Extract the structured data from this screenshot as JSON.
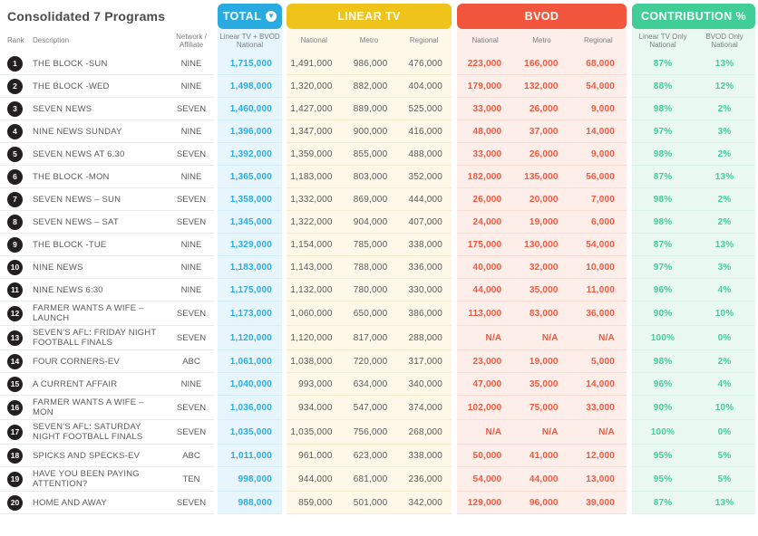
{
  "title": "Consolidated 7 Programs",
  "colors": {
    "total_blue": "#29abe2",
    "linear_yellow": "#efc319",
    "bvod_red": "#f2573d",
    "contrib_green": "#41ce96"
  },
  "header": {
    "groups": {
      "total": "TOTAL",
      "total_sort_icon": "sort-down-circle-icon",
      "linear": "LINEAR TV",
      "bvod": "BVOD",
      "contribution": "CONTRIBUTION %"
    },
    "sub": {
      "rank": "Rank",
      "description": "Description",
      "network": "Network / Affiliate",
      "total": "Linear TV + BVOD National",
      "linear": [
        "National",
        "Metro",
        "Regional"
      ],
      "bvod": [
        "National",
        "Metro",
        "Regional"
      ],
      "contribution": [
        "Linear TV Only National",
        "BVOD Only National"
      ]
    }
  },
  "rows": [
    {
      "rank": "1",
      "description": "THE BLOCK -SUN",
      "network": "NINE",
      "total": "1,715,000",
      "linear": [
        "1,491,000",
        "986,000",
        "476,000"
      ],
      "bvod": [
        "223,000",
        "166,000",
        "68,000"
      ],
      "contribution": [
        "87%",
        "13%"
      ]
    },
    {
      "rank": "2",
      "description": "THE BLOCK -WED",
      "network": "NINE",
      "total": "1,498,000",
      "linear": [
        "1,320,000",
        "882,000",
        "404,000"
      ],
      "bvod": [
        "179,000",
        "132,000",
        "54,000"
      ],
      "contribution": [
        "88%",
        "12%"
      ]
    },
    {
      "rank": "3",
      "description": "SEVEN NEWS",
      "network": "SEVEN",
      "total": "1,460,000",
      "linear": [
        "1,427,000",
        "889,000",
        "525,000"
      ],
      "bvod": [
        "33,000",
        "26,000",
        "9,000"
      ],
      "contribution": [
        "98%",
        "2%"
      ]
    },
    {
      "rank": "4",
      "description": "NINE NEWS SUNDAY",
      "network": "NINE",
      "total": "1,396,000",
      "linear": [
        "1,347,000",
        "900,000",
        "416,000"
      ],
      "bvod": [
        "48,000",
        "37,000",
        "14,000"
      ],
      "contribution": [
        "97%",
        "3%"
      ]
    },
    {
      "rank": "5",
      "description": "SEVEN NEWS AT 6.30",
      "network": "SEVEN",
      "total": "1,392,000",
      "linear": [
        "1,359,000",
        "855,000",
        "488,000"
      ],
      "bvod": [
        "33,000",
        "26,000",
        "9,000"
      ],
      "contribution": [
        "98%",
        "2%"
      ]
    },
    {
      "rank": "6",
      "description": "THE BLOCK -MON",
      "network": "NINE",
      "total": "1,365,000",
      "linear": [
        "1,183,000",
        "803,000",
        "352,000"
      ],
      "bvod": [
        "182,000",
        "135,000",
        "56,000"
      ],
      "contribution": [
        "87%",
        "13%"
      ]
    },
    {
      "rank": "7",
      "description": "SEVEN NEWS – SUN",
      "network": "SEVEN",
      "total": "1,358,000",
      "linear": [
        "1,332,000",
        "869,000",
        "444,000"
      ],
      "bvod": [
        "26,000",
        "20,000",
        "7,000"
      ],
      "contribution": [
        "98%",
        "2%"
      ]
    },
    {
      "rank": "8",
      "description": "SEVEN NEWS – SAT",
      "network": "SEVEN",
      "total": "1,345,000",
      "linear": [
        "1,322,000",
        "904,000",
        "407,000"
      ],
      "bvod": [
        "24,000",
        "19,000",
        "6,000"
      ],
      "contribution": [
        "98%",
        "2%"
      ]
    },
    {
      "rank": "9",
      "description": "THE BLOCK -TUE",
      "network": "NINE",
      "total": "1,329,000",
      "linear": [
        "1,154,000",
        "785,000",
        "338,000"
      ],
      "bvod": [
        "175,000",
        "130,000",
        "54,000"
      ],
      "contribution": [
        "87%",
        "13%"
      ]
    },
    {
      "rank": "10",
      "description": "NINE NEWS",
      "network": "NINE",
      "total": "1,183,000",
      "linear": [
        "1,143,000",
        "788,000",
        "336,000"
      ],
      "bvod": [
        "40,000",
        "32,000",
        "10,000"
      ],
      "contribution": [
        "97%",
        "3%"
      ]
    },
    {
      "rank": "11",
      "description": "NINE NEWS 6:30",
      "network": "NINE",
      "total": "1,175,000",
      "linear": [
        "1,132,000",
        "780,000",
        "330,000"
      ],
      "bvod": [
        "44,000",
        "35,000",
        "11,000"
      ],
      "contribution": [
        "96%",
        "4%"
      ]
    },
    {
      "rank": "12",
      "description": "FARMER WANTS A WIFE – LAUNCH",
      "network": "SEVEN",
      "total": "1,173,000",
      "linear": [
        "1,060,000",
        "650,000",
        "386,000"
      ],
      "bvod": [
        "113,000",
        "83,000",
        "36,000"
      ],
      "contribution": [
        "90%",
        "10%"
      ]
    },
    {
      "rank": "13",
      "description": "SEVEN'S AFL: FRIDAY NIGHT FOOTBALL FINALS",
      "network": "SEVEN",
      "total": "1,120,000",
      "linear": [
        "1,120,000",
        "817,000",
        "288,000"
      ],
      "bvod": [
        "N/A",
        "N/A",
        "N/A"
      ],
      "contribution": [
        "100%",
        "0%"
      ]
    },
    {
      "rank": "14",
      "description": "FOUR CORNERS-EV",
      "network": "ABC",
      "total": "1,061,000",
      "linear": [
        "1,038,000",
        "720,000",
        "317,000"
      ],
      "bvod": [
        "23,000",
        "19,000",
        "5,000"
      ],
      "contribution": [
        "98%",
        "2%"
      ]
    },
    {
      "rank": "15",
      "description": "A CURRENT AFFAIR",
      "network": "NINE",
      "total": "1,040,000",
      "linear": [
        "993,000",
        "634,000",
        "340,000"
      ],
      "bvod": [
        "47,000",
        "35,000",
        "14,000"
      ],
      "contribution": [
        "96%",
        "4%"
      ]
    },
    {
      "rank": "16",
      "description": "FARMER WANTS A WIFE – MON",
      "network": "SEVEN",
      "total": "1,036,000",
      "linear": [
        "934,000",
        "547,000",
        "374,000"
      ],
      "bvod": [
        "102,000",
        "75,000",
        "33,000"
      ],
      "contribution": [
        "90%",
        "10%"
      ]
    },
    {
      "rank": "17",
      "description": "SEVEN'S AFL: SATURDAY NIGHT FOOTBALL FINALS",
      "network": "SEVEN",
      "total": "1,035,000",
      "linear": [
        "1,035,000",
        "756,000",
        "268,000"
      ],
      "bvod": [
        "N/A",
        "N/A",
        "N/A"
      ],
      "contribution": [
        "100%",
        "0%"
      ]
    },
    {
      "rank": "18",
      "description": "SPICKS AND SPECKS-EV",
      "network": "ABC",
      "total": "1,011,000",
      "linear": [
        "961,000",
        "623,000",
        "338,000"
      ],
      "bvod": [
        "50,000",
        "41,000",
        "12,000"
      ],
      "contribution": [
        "95%",
        "5%"
      ]
    },
    {
      "rank": "19",
      "description": "HAVE YOU BEEN PAYING ATTENTION?",
      "network": "TEN",
      "total": "998,000",
      "linear": [
        "944,000",
        "681,000",
        "236,000"
      ],
      "bvod": [
        "54,000",
        "44,000",
        "13,000"
      ],
      "contribution": [
        "95%",
        "5%"
      ]
    },
    {
      "rank": "20",
      "description": "HOME AND AWAY",
      "network": "SEVEN",
      "total": "988,000",
      "linear": [
        "859,000",
        "501,000",
        "342,000"
      ],
      "bvod": [
        "129,000",
        "96,000",
        "39,000"
      ],
      "contribution": [
        "87%",
        "13%"
      ]
    }
  ]
}
